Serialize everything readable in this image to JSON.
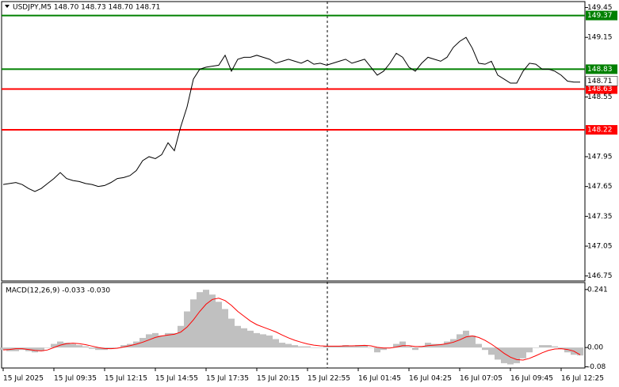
{
  "chart_data": [
    {
      "type": "line",
      "title": "USDJPY,M5  148.70 148.73 148.70 148.71",
      "categories": [
        "15 Jul 2025",
        null,
        null,
        null,
        null,
        null,
        null,
        null,
        "15 Jul 09:35",
        null,
        null,
        null,
        null,
        null,
        null,
        null,
        "15 Jul 12:15",
        null,
        null,
        null,
        null,
        null,
        null,
        null,
        "15 Jul 14:55",
        null,
        null,
        null,
        null,
        null,
        null,
        null,
        "15 Jul 17:35",
        null,
        null,
        null,
        null,
        null,
        null,
        null,
        "15 Jul 20:15",
        null,
        null,
        null,
        null,
        null,
        null,
        null,
        "15 Jul 22:55",
        null,
        null,
        null,
        null,
        null,
        null,
        null,
        "16 Jul 01:45",
        null,
        null,
        null,
        null,
        null,
        null,
        null,
        "16 Jul 04:25",
        null,
        null,
        null,
        null,
        null,
        null,
        null,
        "16 Jul 07:05",
        null,
        null,
        null,
        null,
        null,
        null,
        null,
        "16 Jul 09:45",
        null,
        null,
        null,
        null,
        null,
        null,
        null,
        "16 Jul 12:25",
        null,
        null,
        null
      ],
      "values": [
        147.67,
        147.68,
        147.69,
        147.67,
        147.63,
        147.6,
        147.63,
        147.68,
        147.73,
        147.79,
        147.73,
        147.71,
        147.7,
        147.68,
        147.67,
        147.65,
        147.66,
        147.69,
        147.73,
        147.74,
        147.76,
        147.81,
        147.91,
        147.95,
        147.93,
        147.97,
        148.09,
        148.01,
        148.25,
        148.45,
        148.73,
        148.83,
        148.85,
        148.86,
        148.87,
        148.97,
        148.81,
        148.93,
        148.95,
        148.95,
        148.97,
        148.95,
        148.93,
        148.89,
        148.91,
        148.93,
        148.91,
        148.89,
        148.92,
        148.88,
        148.89,
        148.87,
        148.89,
        148.91,
        148.93,
        148.89,
        148.91,
        148.93,
        148.85,
        148.77,
        148.81,
        148.89,
        148.99,
        148.95,
        148.85,
        148.81,
        148.89,
        148.95,
        148.93,
        148.91,
        148.95,
        149.05,
        149.11,
        149.15,
        149.04,
        148.89,
        148.88,
        148.91,
        148.77,
        148.73,
        148.69,
        148.69,
        148.81,
        148.89,
        148.88,
        148.83,
        148.83,
        148.81,
        148.77,
        148.71,
        148.7,
        148.7
      ],
      "color": "#000000",
      "ylim": [
        146.7,
        149.51
      ],
      "yticks": [
        149.45,
        149.15,
        148.55,
        147.95,
        147.65,
        147.35,
        147.05,
        146.75
      ],
      "levels": [
        {
          "value": 149.37,
          "color": "#008000"
        },
        {
          "value": 148.83,
          "color": "#008000"
        },
        {
          "value": 148.63,
          "color": "#ff0000"
        },
        {
          "value": 148.22,
          "color": "#ff0000"
        }
      ],
      "last_price": 148.71
    },
    {
      "type": "macd",
      "title": "MACD(12,26,9) -0.033 -0.030",
      "histogram": {
        "color": "#c0c0c0",
        "values": [
          -0.01,
          -0.015,
          -0.015,
          -0.01,
          -0.015,
          -0.02,
          -0.015,
          0.0,
          0.015,
          0.025,
          0.02,
          0.015,
          0.01,
          0.005,
          -0.005,
          -0.01,
          -0.01,
          -0.005,
          0.0,
          0.01,
          0.015,
          0.025,
          0.04,
          0.055,
          0.06,
          0.05,
          0.06,
          0.06,
          0.09,
          0.15,
          0.2,
          0.23,
          0.24,
          0.22,
          0.19,
          0.16,
          0.12,
          0.09,
          0.08,
          0.07,
          0.06,
          0.055,
          0.05,
          0.035,
          0.02,
          0.015,
          0.01,
          0.005,
          0.005,
          0.0,
          0.0,
          0.005,
          0.005,
          0.005,
          0.01,
          0.005,
          0.01,
          0.01,
          0.0,
          -0.02,
          -0.01,
          0.0,
          0.015,
          0.025,
          0.005,
          -0.01,
          0.005,
          0.02,
          0.015,
          0.015,
          0.025,
          0.035,
          0.055,
          0.07,
          0.05,
          0.015,
          -0.01,
          -0.03,
          -0.05,
          -0.065,
          -0.07,
          -0.065,
          -0.045,
          -0.02,
          0.0,
          0.01,
          0.01,
          0.005,
          -0.005,
          -0.02,
          -0.03,
          -0.033
        ]
      },
      "signal": {
        "color": "#ff0000",
        "values": [
          -0.01,
          -0.008,
          -0.005,
          -0.005,
          -0.008,
          -0.012,
          -0.014,
          -0.01,
          0.0,
          0.01,
          0.016,
          0.018,
          0.016,
          0.012,
          0.006,
          0.0,
          -0.004,
          -0.005,
          -0.003,
          0.002,
          0.008,
          0.014,
          0.022,
          0.032,
          0.042,
          0.048,
          0.052,
          0.055,
          0.064,
          0.085,
          0.115,
          0.15,
          0.18,
          0.2,
          0.205,
          0.195,
          0.175,
          0.15,
          0.13,
          0.11,
          0.095,
          0.085,
          0.075,
          0.065,
          0.052,
          0.04,
          0.03,
          0.022,
          0.015,
          0.01,
          0.007,
          0.006,
          0.006,
          0.006,
          0.007,
          0.007,
          0.008,
          0.009,
          0.007,
          0.001,
          -0.002,
          -0.002,
          0.002,
          0.008,
          0.008,
          0.004,
          0.004,
          0.008,
          0.01,
          0.012,
          0.016,
          0.022,
          0.032,
          0.044,
          0.048,
          0.042,
          0.03,
          0.014,
          -0.004,
          -0.024,
          -0.04,
          -0.05,
          -0.052,
          -0.045,
          -0.034,
          -0.022,
          -0.012,
          -0.006,
          -0.005,
          -0.008,
          -0.015,
          -0.03
        ]
      },
      "ylim": [
        -0.085,
        0.27
      ],
      "yticks": [
        0.241,
        {
          "value": 0,
          "label": "0.00"
        },
        -0.08
      ]
    }
  ]
}
